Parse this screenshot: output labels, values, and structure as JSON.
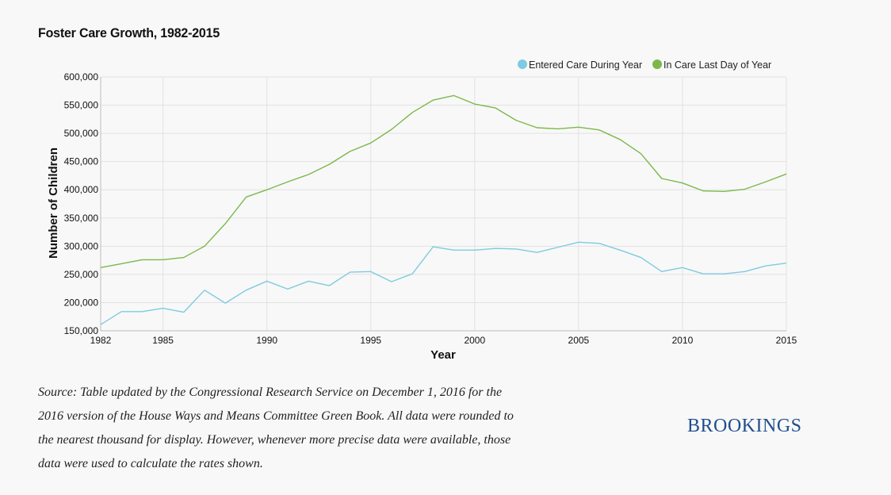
{
  "title": "Foster Care Growth, 1982-2015",
  "source_text": "Source: Table updated by the Congressional Research Service on December 1, 2016 for the 2016 version of the House Ways and Means Committee Green Book. All data were rounded to the nearest thousand for display. However, whenever more precise data were available, those data were used to calculate the rates shown.",
  "logo_text": "BROOKINGS",
  "chart_data": {
    "type": "line",
    "xlabel": "Year",
    "ylabel": "Number of Children",
    "xlim": [
      1982,
      2015
    ],
    "ylim": [
      150000,
      600000
    ],
    "x_ticks": [
      1982,
      1985,
      1990,
      1995,
      2000,
      2005,
      2010,
      2015
    ],
    "y_ticks": [
      150000,
      200000,
      250000,
      300000,
      350000,
      400000,
      450000,
      500000,
      550000,
      600000
    ],
    "y_tick_labels": [
      "150,000",
      "200,000",
      "250,000",
      "300,000",
      "350,000",
      "400,000",
      "450,000",
      "500,000",
      "550,000",
      "600,000"
    ],
    "grid": true,
    "legend_position": "top-right",
    "x": [
      1982,
      1983,
      1984,
      1985,
      1986,
      1987,
      1988,
      1989,
      1990,
      1991,
      1992,
      1993,
      1994,
      1995,
      1996,
      1997,
      1998,
      1999,
      2000,
      2001,
      2002,
      2003,
      2004,
      2005,
      2006,
      2007,
      2008,
      2009,
      2010,
      2011,
      2012,
      2013,
      2014,
      2015
    ],
    "series": [
      {
        "name": "Entered Care During Year",
        "color": "#7ecbe0",
        "values": [
          161000,
          184000,
          184000,
          190000,
          183000,
          222000,
          199000,
          222000,
          238000,
          224000,
          238000,
          230000,
          254000,
          255000,
          237000,
          251000,
          299000,
          293000,
          293000,
          296000,
          295000,
          289000,
          298000,
          307000,
          305000,
          293000,
          280000,
          255000,
          262000,
          251000,
          251000,
          255000,
          265000,
          270000
        ]
      },
      {
        "name": "In Care Last Day of Year",
        "color": "#7cb84a",
        "values": [
          262000,
          269000,
          276000,
          276000,
          280000,
          300000,
          340000,
          387000,
          400000,
          414000,
          427000,
          445000,
          468000,
          483000,
          507000,
          537000,
          559000,
          567000,
          552000,
          545000,
          523000,
          510000,
          508000,
          511000,
          506000,
          489000,
          464000,
          420000,
          412000,
          398000,
          397000,
          401000,
          414000,
          428000
        ]
      }
    ]
  }
}
